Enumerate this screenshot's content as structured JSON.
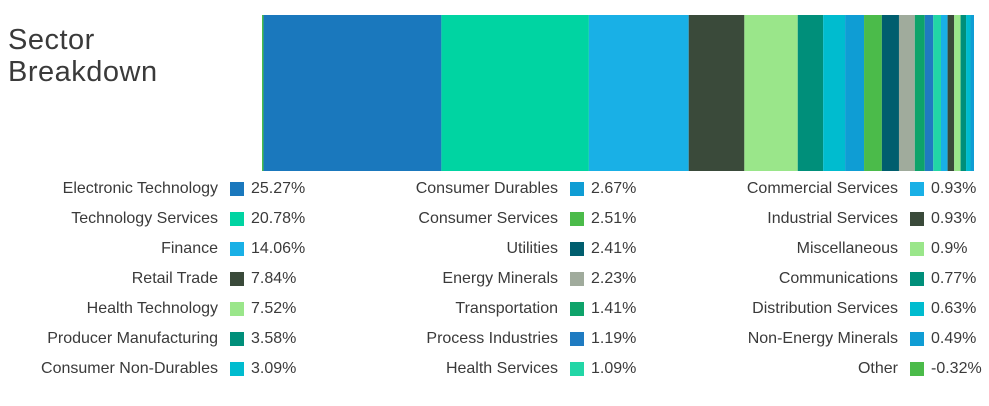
{
  "title": "Sector Breakdown",
  "chart_data": {
    "type": "bar",
    "orientation": "horizontal-stacked",
    "title": "Sector Breakdown",
    "series": [
      {
        "name": "Electronic Technology",
        "value": 25.27,
        "label": "25.27%",
        "color": "#1a78bd"
      },
      {
        "name": "Technology Services",
        "value": 20.78,
        "label": "20.78%",
        "color": "#00d4a2"
      },
      {
        "name": "Finance",
        "value": 14.06,
        "label": "14.06%",
        "color": "#19b0e6"
      },
      {
        "name": "Retail Trade",
        "value": 7.84,
        "label": "7.84%",
        "color": "#3a4a3a"
      },
      {
        "name": "Health Technology",
        "value": 7.52,
        "label": "7.52%",
        "color": "#9ae68a"
      },
      {
        "name": "Producer Manufacturing",
        "value": 3.58,
        "label": "3.58%",
        "color": "#008f7a"
      },
      {
        "name": "Consumer Non-Durables",
        "value": 3.09,
        "label": "3.09%",
        "color": "#00bccf"
      },
      {
        "name": "Consumer Durables",
        "value": 2.67,
        "label": "2.67%",
        "color": "#0f9dd4"
      },
      {
        "name": "Consumer Services",
        "value": 2.51,
        "label": "2.51%",
        "color": "#4bbb4a"
      },
      {
        "name": "Utilities",
        "value": 2.41,
        "label": "2.41%",
        "color": "#005e6e"
      },
      {
        "name": "Energy Minerals",
        "value": 2.23,
        "label": "2.23%",
        "color": "#a0ab9c"
      },
      {
        "name": "Transportation",
        "value": 1.41,
        "label": "1.41%",
        "color": "#0ea36a"
      },
      {
        "name": "Process Industries",
        "value": 1.19,
        "label": "1.19%",
        "color": "#1f7bc1"
      },
      {
        "name": "Health Services",
        "value": 1.09,
        "label": "1.09%",
        "color": "#22d6a6"
      },
      {
        "name": "Commercial Services",
        "value": 0.93,
        "label": "0.93%",
        "color": "#19b0e6"
      },
      {
        "name": "Industrial Services",
        "value": 0.93,
        "label": "0.93%",
        "color": "#3a4a3a"
      },
      {
        "name": "Miscellaneous",
        "value": 0.9,
        "label": "0.9%",
        "color": "#9ae68a"
      },
      {
        "name": "Communications",
        "value": 0.77,
        "label": "0.77%",
        "color": "#008f7a"
      },
      {
        "name": "Distribution Services",
        "value": 0.63,
        "label": "0.63%",
        "color": "#00bccf"
      },
      {
        "name": "Non-Energy Minerals",
        "value": 0.49,
        "label": "0.49%",
        "color": "#0f9dd4"
      },
      {
        "name": "Other",
        "value": -0.32,
        "label": "-0.32%",
        "color": "#4bbb4a"
      }
    ]
  }
}
